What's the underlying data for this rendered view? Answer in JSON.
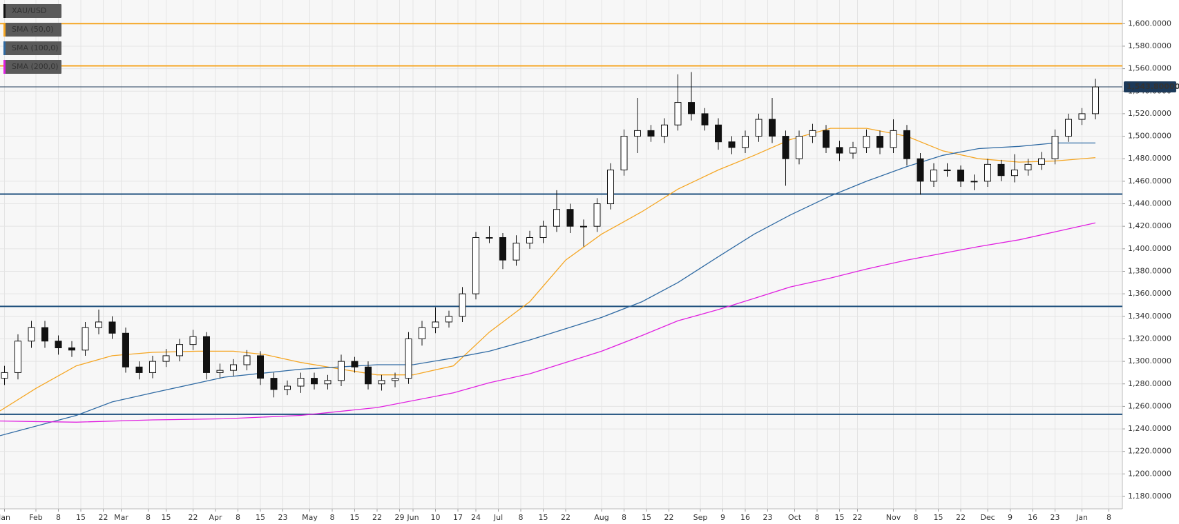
{
  "chart_data": {
    "type": "candlestick",
    "name": "XAU/USD",
    "up_color": "#ffffff",
    "down_color": "#111111",
    "x": [
      1,
      4,
      7,
      10,
      13,
      16,
      19,
      22,
      25,
      28,
      31,
      34,
      37,
      40,
      43,
      46,
      49,
      52,
      55,
      58,
      61,
      64,
      67,
      70,
      73,
      76,
      79,
      82,
      85,
      88,
      91,
      94,
      97,
      100,
      103,
      106,
      109,
      112,
      115,
      118,
      121,
      124,
      127,
      130,
      133,
      136,
      139,
      142,
      145,
      148,
      151,
      154,
      157,
      160,
      163,
      166,
      169,
      172,
      175,
      178,
      181,
      184,
      187,
      190,
      193,
      196,
      199,
      202,
      205,
      208,
      211,
      214,
      217,
      220,
      223,
      226,
      229,
      232,
      235,
      238,
      241,
      244
    ],
    "open": [
      1285,
      1290,
      1318,
      1330,
      1318,
      1312,
      1310,
      1330,
      1335,
      1325,
      1295,
      1290,
      1300,
      1305,
      1315,
      1322,
      1290,
      1292,
      1297,
      1305,
      1285,
      1275,
      1278,
      1285,
      1280,
      1283,
      1300,
      1295,
      1280,
      1283,
      1285,
      1320,
      1330,
      1335,
      1340,
      1360,
      1410,
      1410,
      1390,
      1405,
      1410,
      1420,
      1435,
      1420,
      1420,
      1440,
      1470,
      1500,
      1505,
      1500,
      1510,
      1530,
      1520,
      1510,
      1495,
      1490,
      1500,
      1515,
      1500,
      1480,
      1500,
      1505,
      1490,
      1485,
      1490,
      1500,
      1490,
      1505,
      1480,
      1460,
      1470,
      1470,
      1460,
      1460,
      1475,
      1465,
      1470,
      1475,
      1480,
      1500,
      1515,
      1520
    ],
    "high": [
      1296,
      1324,
      1336,
      1336,
      1323,
      1318,
      1335,
      1346,
      1340,
      1330,
      1300,
      1305,
      1311,
      1320,
      1328,
      1326,
      1298,
      1302,
      1310,
      1309,
      1290,
      1283,
      1290,
      1290,
      1288,
      1306,
      1304,
      1300,
      1288,
      1290,
      1326,
      1336,
      1348,
      1345,
      1366,
      1415,
      1420,
      1414,
      1412,
      1416,
      1425,
      1452,
      1440,
      1426,
      1445,
      1476,
      1506,
      1534,
      1510,
      1516,
      1555,
      1557,
      1525,
      1516,
      1500,
      1505,
      1520,
      1534,
      1505,
      1505,
      1511,
      1510,
      1496,
      1495,
      1506,
      1505,
      1515,
      1510,
      1485,
      1476,
      1476,
      1474,
      1466,
      1480,
      1479,
      1484,
      1480,
      1486,
      1506,
      1520,
      1525,
      1551
    ],
    "low": [
      1279,
      1284,
      1312,
      1312,
      1306,
      1304,
      1305,
      1324,
      1320,
      1290,
      1284,
      1285,
      1295,
      1300,
      1310,
      1284,
      1285,
      1287,
      1292,
      1279,
      1268,
      1270,
      1272,
      1275,
      1275,
      1278,
      1290,
      1275,
      1274,
      1277,
      1280,
      1314,
      1325,
      1330,
      1335,
      1355,
      1405,
      1382,
      1385,
      1400,
      1405,
      1415,
      1414,
      1402,
      1415,
      1435,
      1465,
      1485,
      1495,
      1494,
      1505,
      1514,
      1505,
      1488,
      1484,
      1485,
      1495,
      1494,
      1456,
      1475,
      1494,
      1485,
      1478,
      1480,
      1485,
      1484,
      1485,
      1474,
      1448,
      1455,
      1464,
      1455,
      1452,
      1455,
      1460,
      1459,
      1465,
      1470,
      1475,
      1495,
      1510,
      1515
    ],
    "close": [
      1290,
      1318,
      1330,
      1318,
      1312,
      1310,
      1330,
      1335,
      1325,
      1295,
      1290,
      1300,
      1305,
      1315,
      1322,
      1290,
      1292,
      1297,
      1305,
      1285,
      1275,
      1278,
      1285,
      1280,
      1283,
      1300,
      1295,
      1280,
      1283,
      1285,
      1320,
      1330,
      1335,
      1340,
      1360,
      1410,
      1410,
      1390,
      1405,
      1410,
      1420,
      1435,
      1420,
      1420,
      1440,
      1470,
      1500,
      1505,
      1500,
      1510,
      1530,
      1520,
      1510,
      1495,
      1490,
      1500,
      1515,
      1500,
      1480,
      1500,
      1505,
      1490,
      1485,
      1490,
      1500,
      1490,
      1505,
      1480,
      1460,
      1470,
      1470,
      1460,
      1460,
      1475,
      1465,
      1470,
      1475,
      1480,
      1500,
      1515,
      1520,
      1543.8
    ],
    "lines": [
      {
        "name": "SMA (50,0)",
        "color": "#f5a623",
        "x": [
          0,
          8,
          17,
          25,
          34,
          44,
          52,
          59,
          67,
          76,
          84,
          92,
          101,
          109,
          118,
          126,
          134,
          143,
          151,
          160,
          168,
          176,
          185,
          193,
          202,
          210,
          218,
          227,
          235,
          244
        ],
        "values": [
          1256,
          1276,
          1296,
          1305,
          1308,
          1309,
          1309,
          1306,
          1299,
          1293,
          1288,
          1288,
          1296,
          1326,
          1353,
          1390,
          1413,
          1433,
          1453,
          1470,
          1483,
          1497,
          1507,
          1507,
          1500,
          1487,
          1480,
          1477,
          1478,
          1481
        ]
      },
      {
        "name": "SMA (100,0)",
        "color": "#2f6aa3",
        "x": [
          0,
          17,
          25,
          34,
          50,
          67,
          84,
          92,
          101,
          109,
          118,
          126,
          134,
          143,
          151,
          160,
          168,
          176,
          185,
          193,
          202,
          210,
          218,
          227,
          235,
          244
        ],
        "values": [
          1234,
          1252,
          1264,
          1272,
          1286,
          1293,
          1297,
          1297,
          1303,
          1309,
          1319,
          1329,
          1339,
          1353,
          1370,
          1393,
          1413,
          1430,
          1447,
          1460,
          1473,
          1483,
          1489,
          1491,
          1494,
          1494
        ]
      },
      {
        "name": "SMA (200,0)",
        "color": "#e020e0",
        "x": [
          0,
          17,
          34,
          50,
          67,
          84,
          101,
          109,
          118,
          126,
          134,
          143,
          151,
          160,
          168,
          176,
          185,
          193,
          202,
          210,
          218,
          227,
          235,
          244
        ],
        "values": [
          1247,
          1246,
          1248,
          1249,
          1252,
          1259,
          1272,
          1281,
          1289,
          1299,
          1309,
          1323,
          1336,
          1346,
          1356,
          1366,
          1374,
          1382,
          1390,
          1396,
          1402,
          1408,
          1415,
          1423
        ]
      }
    ],
    "levels": [
      {
        "value": 1600,
        "color": "#f5a623"
      },
      {
        "value": 1562.5,
        "color": "#f5a623"
      },
      {
        "value": 1448.6,
        "color": "#1d4f7c"
      },
      {
        "value": 1348.8,
        "color": "#1d4f7c"
      },
      {
        "value": 1253,
        "color": "#1d4f7c"
      }
    ],
    "current_price": 1543.8,
    "current_price_label": "1,543.80000",
    "current_price_color": "#1d3a5a",
    "xlim": [
      0,
      250
    ],
    "ylim": [
      1169,
      1621
    ],
    "grid": true,
    "xticks": [
      {
        "value": 1,
        "label": "Jan"
      },
      {
        "value": 8,
        "label": "Feb"
      },
      {
        "value": 13,
        "label": "8"
      },
      {
        "value": 18,
        "label": "15"
      },
      {
        "value": 23,
        "label": "22"
      },
      {
        "value": 27,
        "label": "Mar"
      },
      {
        "value": 33,
        "label": "8"
      },
      {
        "value": 37,
        "label": "15"
      },
      {
        "value": 43,
        "label": "22"
      },
      {
        "value": 48,
        "label": "Apr"
      },
      {
        "value": 53,
        "label": "8"
      },
      {
        "value": 58,
        "label": "15"
      },
      {
        "value": 63,
        "label": "23"
      },
      {
        "value": 69,
        "label": "May"
      },
      {
        "value": 74,
        "label": "8"
      },
      {
        "value": 79,
        "label": "15"
      },
      {
        "value": 84,
        "label": "22"
      },
      {
        "value": 89,
        "label": "29"
      },
      {
        "value": 92,
        "label": "Jun"
      },
      {
        "value": 97,
        "label": "10"
      },
      {
        "value": 102,
        "label": "17"
      },
      {
        "value": 106,
        "label": "24"
      },
      {
        "value": 111,
        "label": "Jul"
      },
      {
        "value": 116,
        "label": "8"
      },
      {
        "value": 121,
        "label": "15"
      },
      {
        "value": 126,
        "label": "22"
      },
      {
        "value": 134,
        "label": "Aug"
      },
      {
        "value": 139,
        "label": "8"
      },
      {
        "value": 144,
        "label": "15"
      },
      {
        "value": 149,
        "label": "22"
      },
      {
        "value": 156,
        "label": "Sep"
      },
      {
        "value": 161,
        "label": "9"
      },
      {
        "value": 166,
        "label": "16"
      },
      {
        "value": 171,
        "label": "23"
      },
      {
        "value": 177,
        "label": "Oct"
      },
      {
        "value": 182,
        "label": "8"
      },
      {
        "value": 187,
        "label": "15"
      },
      {
        "value": 191,
        "label": "22"
      },
      {
        "value": 199,
        "label": "Nov"
      },
      {
        "value": 204,
        "label": "8"
      },
      {
        "value": 209,
        "label": "15"
      },
      {
        "value": 214,
        "label": "22"
      },
      {
        "value": 220,
        "label": "Dec"
      },
      {
        "value": 225,
        "label": "9"
      },
      {
        "value": 230,
        "label": "16"
      },
      {
        "value": 235,
        "label": "23"
      },
      {
        "value": 241,
        "label": "Jan"
      },
      {
        "value": 247,
        "label": "8"
      }
    ],
    "yticks": [
      {
        "value": 1180,
        "label": "1,180.0000"
      },
      {
        "value": 1200,
        "label": "1,200.0000"
      },
      {
        "value": 1220,
        "label": "1,220.0000"
      },
      {
        "value": 1240,
        "label": "1,240.0000"
      },
      {
        "value": 1260,
        "label": "1,260.0000"
      },
      {
        "value": 1280,
        "label": "1,280.0000"
      },
      {
        "value": 1300,
        "label": "1,300.0000"
      },
      {
        "value": 1320,
        "label": "1,320.0000"
      },
      {
        "value": 1340,
        "label": "1,340.0000"
      },
      {
        "value": 1360,
        "label": "1,360.0000"
      },
      {
        "value": 1380,
        "label": "1,380.0000"
      },
      {
        "value": 1400,
        "label": "1,400.0000"
      },
      {
        "value": 1420,
        "label": "1,420.0000"
      },
      {
        "value": 1440,
        "label": "1,440.0000"
      },
      {
        "value": 1460,
        "label": "1,460.0000"
      },
      {
        "value": 1480,
        "label": "1,480.0000"
      },
      {
        "value": 1500,
        "label": "1,500.0000"
      },
      {
        "value": 1520,
        "label": "1,520.0000"
      },
      {
        "value": 1540,
        "label": "1,540.0000"
      },
      {
        "value": 1560,
        "label": "1,560.0000"
      },
      {
        "value": 1580,
        "label": "1,580.0000"
      },
      {
        "value": 1600,
        "label": "1,600.0000"
      }
    ]
  }
}
